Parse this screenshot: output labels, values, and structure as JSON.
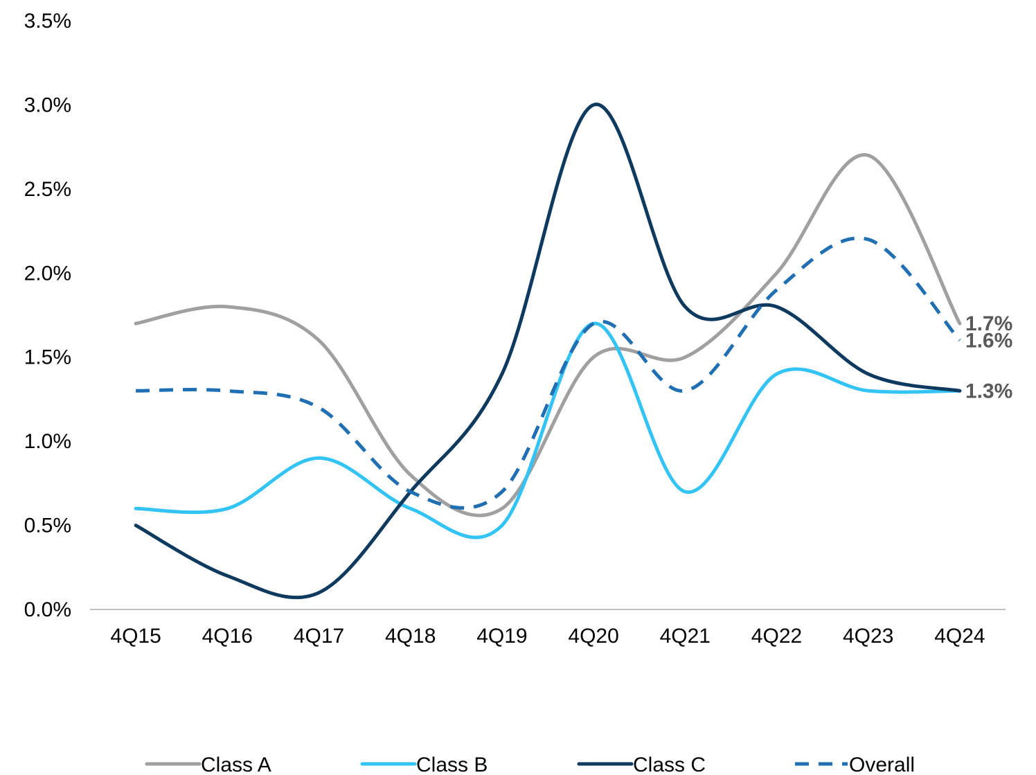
{
  "chart_data": {
    "type": "line",
    "title": "",
    "xlabel": "",
    "ylabel": "",
    "categories": [
      "4Q15",
      "4Q16",
      "4Q17",
      "4Q18",
      "4Q19",
      "4Q20",
      "4Q21",
      "4Q22",
      "4Q23",
      "4Q24"
    ],
    "ylim": [
      0,
      3.5
    ],
    "yticks": [
      0.0,
      0.5,
      1.0,
      1.5,
      2.0,
      2.5,
      3.0,
      3.5
    ],
    "ytick_labels": [
      "0.0%",
      "0.5%",
      "1.0%",
      "1.5%",
      "2.0%",
      "2.5%",
      "3.0%",
      "3.5%"
    ],
    "grid": false,
    "smoothed": true,
    "legend_position": "bottom",
    "series": [
      {
        "name": "Class A",
        "values": [
          1.7,
          1.8,
          1.6,
          0.8,
          0.6,
          1.5,
          1.5,
          2.0,
          2.7,
          1.7
        ],
        "color": "#A0A0A0",
        "dashed": false
      },
      {
        "name": "Class B",
        "values": [
          0.6,
          0.6,
          0.9,
          0.6,
          0.5,
          1.7,
          0.7,
          1.4,
          1.3,
          1.3
        ],
        "color": "#33C3F5",
        "dashed": false
      },
      {
        "name": "Class C",
        "values": [
          0.5,
          0.2,
          0.1,
          0.7,
          1.4,
          3.0,
          1.8,
          1.8,
          1.4,
          1.3
        ],
        "color": "#0E3A5F",
        "dashed": false
      },
      {
        "name": "Overall",
        "values": [
          1.3,
          1.3,
          1.2,
          0.7,
          0.7,
          1.7,
          1.3,
          1.9,
          2.2,
          1.6
        ],
        "color": "#1F6FB2",
        "dashed": true
      }
    ],
    "end_labels": [
      {
        "series": "Class A",
        "text": "1.7%"
      },
      {
        "series": "Overall",
        "text": "1.6%"
      },
      {
        "series": "Class C",
        "text": "1.3%"
      }
    ]
  }
}
